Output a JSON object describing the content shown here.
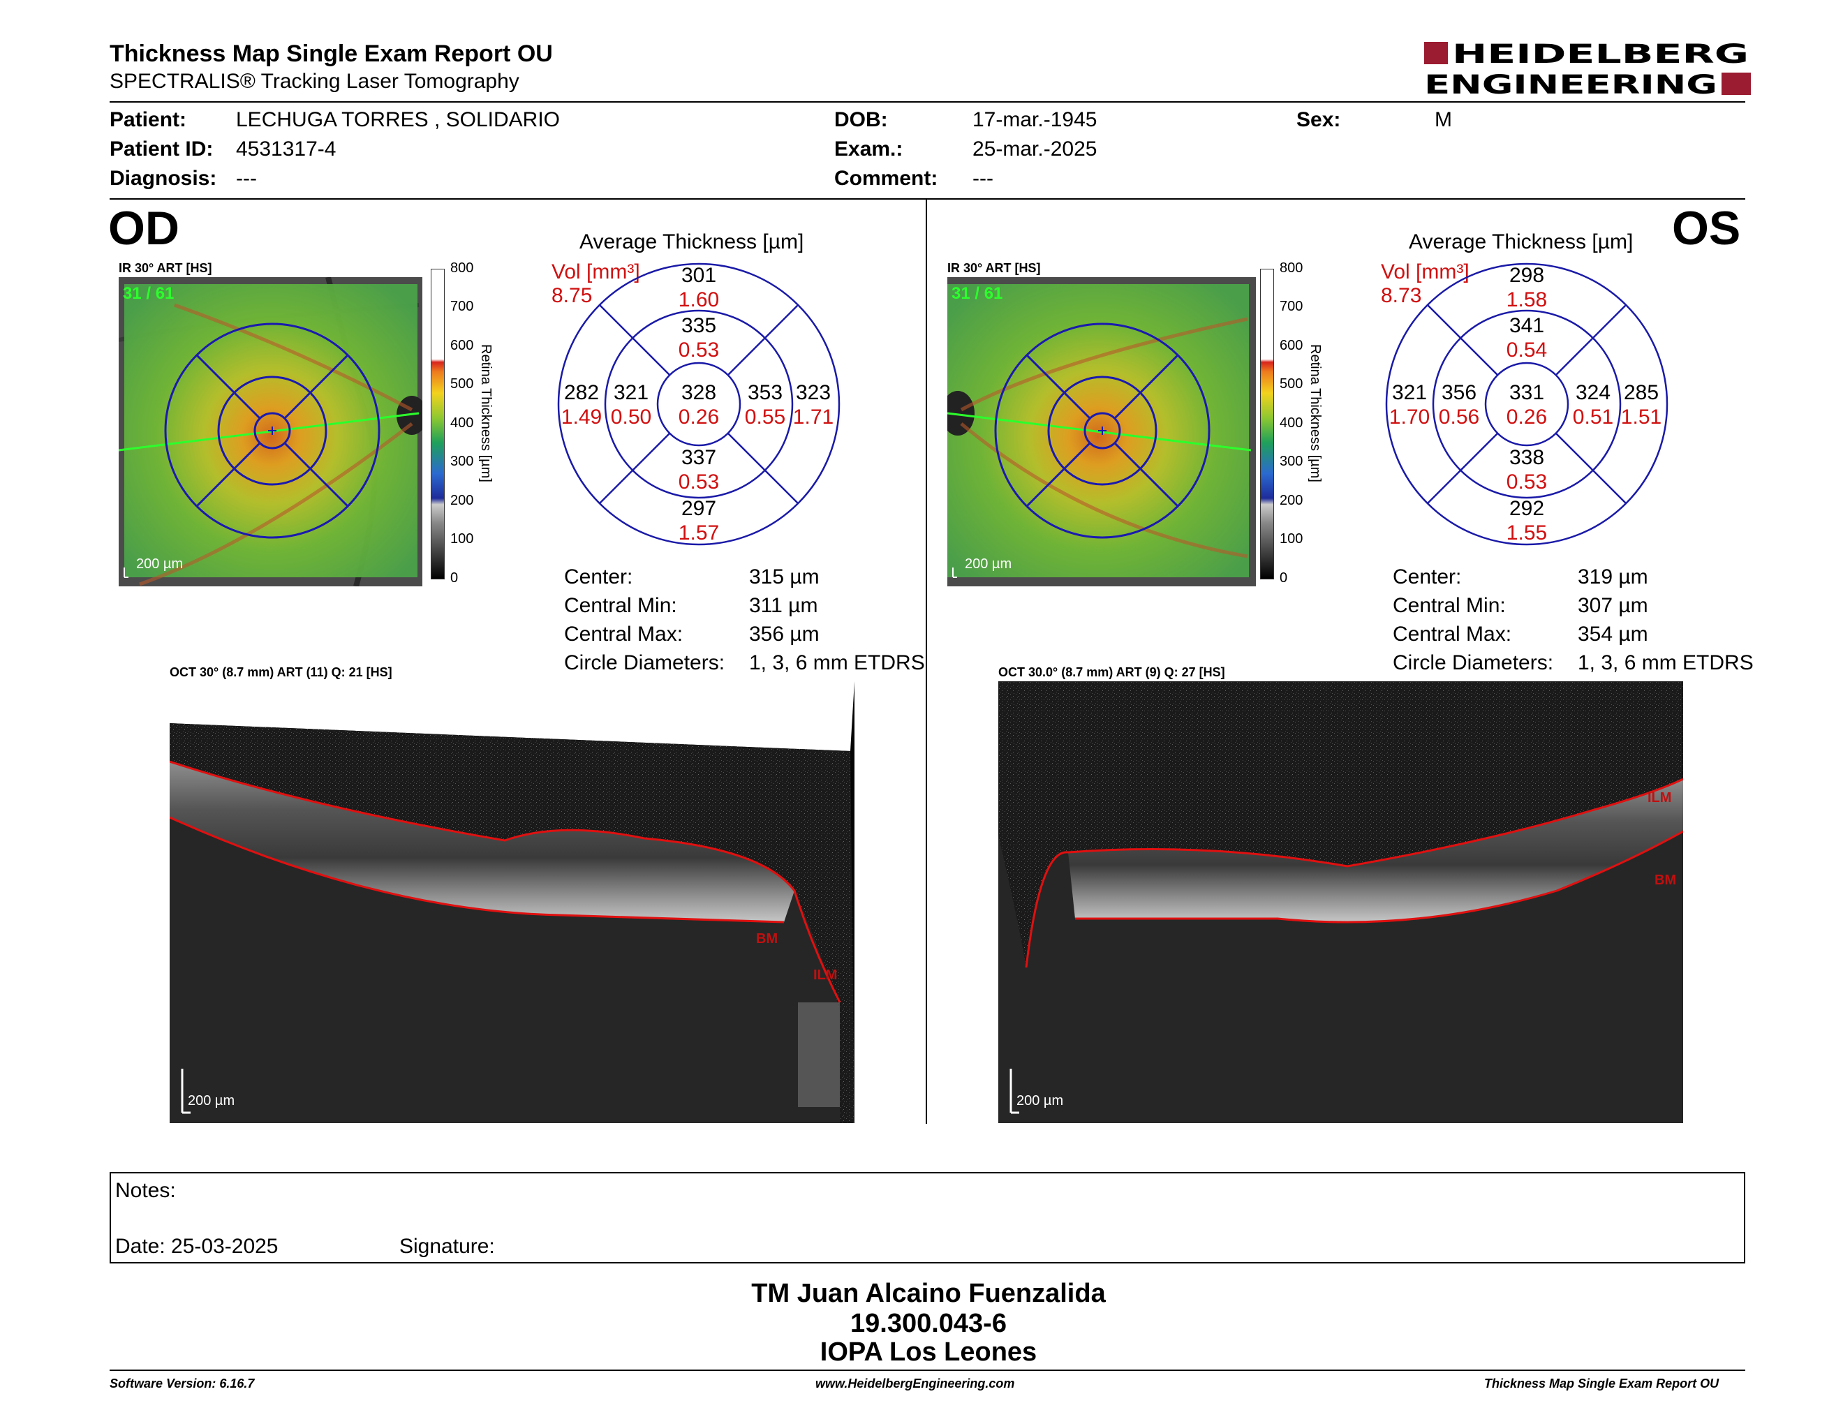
{
  "header": {
    "title": "Thickness Map Single Exam Report OU",
    "subtitle": "SPECTRALIS® Tracking Laser Tomography",
    "logo_line1": "HEIDELBERG",
    "logo_line2": "ENGINEERING"
  },
  "patient": {
    "patient_label": "Patient:",
    "patient_value": "LECHUGA TORRES , SOLIDARIO",
    "id_label": "Patient ID:",
    "id_value": "4531317-4",
    "diagnosis_label": "Diagnosis:",
    "diagnosis_value": "---",
    "dob_label": "DOB:",
    "dob_value": "17-mar.-1945",
    "exam_label": "Exam.:",
    "exam_value": "25-mar.-2025",
    "comment_label": "Comment:",
    "comment_value": "---",
    "sex_label": "Sex:",
    "sex_value": "M"
  },
  "od": {
    "eye": "OD",
    "ir_label": "IR 30° ART [HS]",
    "frames": "31 / 61",
    "scale_label": "200 µm",
    "oct_label": "OCT 30° (8.7 mm) ART (11) Q: 21 [HS]",
    "oct_scale": "200 µm",
    "ilm": "ILM",
    "bm": "BM",
    "avg_title": "Average Thickness [µm]",
    "vol_label": "Vol [mm³]",
    "vol_value": "8.75",
    "grid": {
      "outer_sup": "301",
      "outer_sup_vol": "1.60",
      "inner_sup": "335",
      "inner_sup_vol": "0.53",
      "outer_left": "282",
      "outer_left_vol": "1.49",
      "inner_left": "321",
      "inner_left_vol": "0.50",
      "center": "328",
      "center_vol": "0.26",
      "inner_right": "353",
      "inner_right_vol": "0.55",
      "outer_right": "323",
      "outer_right_vol": "1.71",
      "inner_inf": "337",
      "inner_inf_vol": "0.53",
      "outer_inf": "297",
      "outer_inf_vol": "1.57"
    },
    "stats": {
      "center_label": "Center:",
      "center_value": "315 µm",
      "min_label": "Central Min:",
      "min_value": "311 µm",
      "max_label": "Central Max:",
      "max_value": "356 µm",
      "diam_label": "Circle Diameters:",
      "diam_value": "1, 3, 6 mm ETDRS"
    }
  },
  "os": {
    "eye": "OS",
    "ir_label": "IR 30° ART [HS]",
    "frames": "31 / 61",
    "scale_label": "200 µm",
    "oct_label": "OCT 30.0° (8.7 mm) ART (9) Q: 27 [HS]",
    "oct_scale": "200 µm",
    "ilm": "ILM",
    "bm": "BM",
    "avg_title": "Average Thickness [µm]",
    "vol_label": "Vol [mm³]",
    "vol_value": "8.73",
    "grid": {
      "outer_sup": "298",
      "outer_sup_vol": "1.58",
      "inner_sup": "341",
      "inner_sup_vol": "0.54",
      "outer_left": "321",
      "outer_left_vol": "1.70",
      "inner_left": "356",
      "inner_left_vol": "0.56",
      "center": "331",
      "center_vol": "0.26",
      "inner_right": "324",
      "inner_right_vol": "0.51",
      "outer_right": "285",
      "outer_right_vol": "1.51",
      "inner_inf": "338",
      "inner_inf_vol": "0.53",
      "outer_inf": "292",
      "outer_inf_vol": "1.55"
    },
    "stats": {
      "center_label": "Center:",
      "center_value": "319 µm",
      "min_label": "Central Min:",
      "min_value": "307 µm",
      "max_label": "Central Max:",
      "max_value": "354 µm",
      "diam_label": "Circle Diameters:",
      "diam_value": "1, 3, 6 mm ETDRS"
    }
  },
  "colorbar": {
    "title": "Retina  Thickness [µm]",
    "ticks": [
      "800",
      "700",
      "600",
      "500",
      "400",
      "300",
      "200",
      "100",
      "0"
    ]
  },
  "notes": {
    "notes_label": "Notes:",
    "date_label": "Date: 25-03-2025",
    "signature_label": "Signature:"
  },
  "footer": {
    "name": "TM Juan Alcaino Fuenzalida",
    "rut": "19.300.043-6",
    "institution": "IOPA Los Leones",
    "software": "Software Version: 6.16.7",
    "website": "www.HeidelbergEngineering.com",
    "report_name": "Thickness Map Single Exam Report OU"
  }
}
